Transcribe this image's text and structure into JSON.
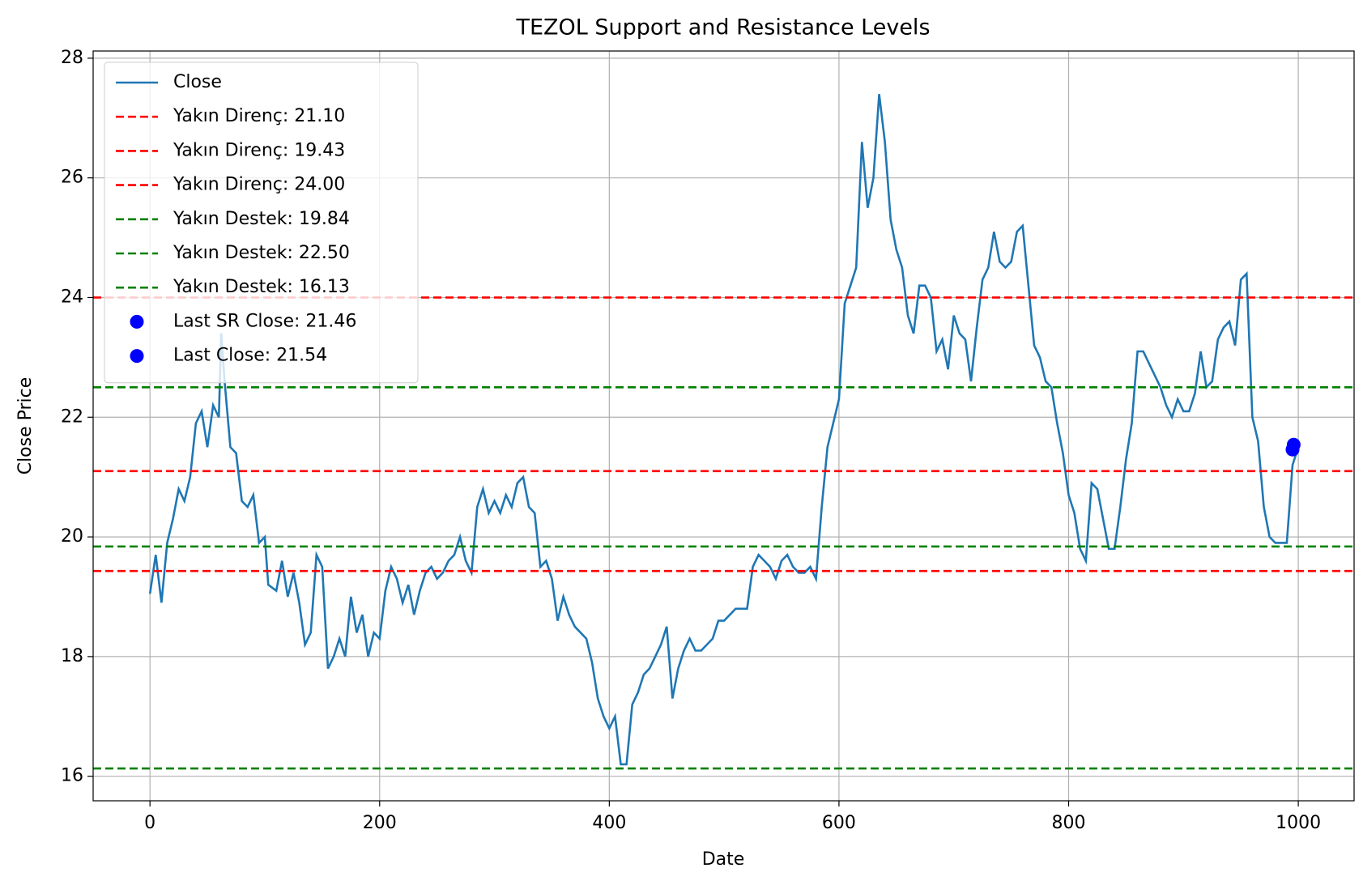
{
  "chart_data": {
    "type": "line",
    "title": "TEZOL Support and Resistance Levels",
    "x_label": "Date",
    "y_label": "Close Price",
    "xlim": [
      -49.5,
      1048.6
    ],
    "ylim": [
      15.59,
      28.12
    ],
    "xticks": [
      0,
      200,
      400,
      600,
      800,
      1000
    ],
    "yticks": [
      16,
      18,
      20,
      22,
      24,
      26,
      28
    ],
    "grid": true,
    "legend": "upper left",
    "x": [
      0,
      5,
      10,
      15,
      20,
      25,
      30,
      35,
      40,
      45,
      50,
      55,
      60,
      62,
      65,
      70,
      75,
      80,
      85,
      90,
      95,
      100,
      103,
      110,
      115,
      120,
      125,
      130,
      135,
      140,
      145,
      150,
      155,
      160,
      165,
      170,
      175,
      180,
      185,
      190,
      195,
      200,
      205,
      210,
      215,
      220,
      225,
      230,
      235,
      240,
      245,
      250,
      255,
      260,
      265,
      270,
      275,
      280,
      285,
      290,
      295,
      300,
      305,
      310,
      315,
      320,
      325,
      330,
      335,
      340,
      345,
      350,
      355,
      360,
      365,
      370,
      375,
      380,
      385,
      390,
      395,
      400,
      405,
      410,
      415,
      420,
      425,
      430,
      435,
      440,
      445,
      450,
      455,
      460,
      465,
      470,
      475,
      480,
      485,
      490,
      495,
      500,
      505,
      510,
      515,
      520,
      525,
      530,
      535,
      540,
      545,
      550,
      555,
      560,
      565,
      570,
      575,
      580,
      585,
      590,
      595,
      600,
      605,
      610,
      615,
      620,
      625,
      630,
      635,
      640,
      645,
      650,
      655,
      660,
      665,
      670,
      675,
      680,
      685,
      690,
      695,
      700,
      705,
      710,
      715,
      720,
      725,
      730,
      735,
      740,
      745,
      750,
      755,
      760,
      765,
      770,
      775,
      780,
      785,
      790,
      795,
      800,
      805,
      810,
      815,
      820,
      825,
      830,
      835,
      840,
      845,
      850,
      855,
      860,
      865,
      870,
      875,
      880,
      885,
      890,
      895,
      900,
      905,
      910,
      915,
      920,
      925,
      930,
      935,
      940,
      945,
      950,
      955,
      960,
      965,
      970,
      975,
      980,
      985,
      990,
      995,
      1000
    ],
    "series": [
      {
        "name": "Close",
        "color": "#1f77b4",
        "values": [
          19.05,
          19.7,
          18.9,
          19.9,
          20.3,
          20.8,
          20.6,
          21.0,
          21.9,
          22.1,
          21.5,
          22.2,
          22.0,
          23.4,
          22.6,
          21.5,
          21.4,
          20.6,
          20.5,
          20.7,
          19.9,
          20.0,
          19.2,
          19.1,
          19.6,
          19.0,
          19.4,
          18.9,
          18.2,
          18.4,
          19.7,
          19.5,
          17.8,
          18.0,
          18.3,
          18.0,
          19.0,
          18.4,
          18.7,
          18.0,
          18.4,
          18.3,
          19.1,
          19.5,
          19.3,
          18.9,
          19.2,
          18.7,
          19.1,
          19.4,
          19.5,
          19.3,
          19.4,
          19.6,
          19.7,
          20.0,
          19.6,
          19.4,
          20.5,
          20.8,
          20.4,
          20.6,
          20.4,
          20.7,
          20.5,
          20.9,
          21.0,
          20.5,
          20.4,
          19.5,
          19.6,
          19.3,
          18.6,
          19.0,
          18.7,
          18.5,
          18.4,
          18.3,
          17.9,
          17.3,
          17.0,
          16.8,
          17.0,
          16.2,
          16.2,
          17.2,
          17.4,
          17.7,
          17.8,
          18.0,
          18.2,
          18.5,
          17.3,
          17.8,
          18.1,
          18.3,
          18.1,
          18.1,
          18.2,
          18.3,
          18.6,
          18.6,
          18.7,
          18.8,
          18.8,
          18.8,
          19.5,
          19.7,
          19.6,
          19.5,
          19.3,
          19.6,
          19.7,
          19.5,
          19.4,
          19.4,
          19.5,
          19.3,
          20.5,
          21.5,
          21.9,
          22.3,
          23.9,
          24.2,
          24.5,
          26.6,
          25.5,
          26.0,
          27.4,
          26.6,
          25.3,
          24.8,
          24.5,
          23.7,
          23.4,
          24.2,
          24.2,
          24.0,
          23.1,
          23.3,
          22.8,
          23.7,
          23.4,
          23.3,
          22.6,
          23.5,
          24.3,
          24.5,
          25.1,
          24.6,
          24.5,
          24.6,
          25.1,
          25.2,
          24.2,
          23.2,
          23.0,
          22.6,
          22.5,
          21.9,
          21.4,
          20.7,
          20.4,
          19.8,
          19.6,
          20.9,
          20.8,
          20.3,
          19.8,
          19.8,
          20.5,
          21.3,
          21.9,
          23.1,
          23.1,
          22.9,
          22.7,
          22.5,
          22.2,
          22.0,
          22.3,
          22.1,
          22.1,
          22.4,
          23.1,
          22.5,
          22.6,
          23.3,
          23.5,
          23.6,
          23.2,
          24.3,
          24.4,
          22.0,
          21.6,
          20.5,
          20.0,
          19.9,
          19.9,
          19.9,
          21.2,
          21.5
        ]
      }
    ],
    "hlines": [
      {
        "name": "Yakın Direnç: 21.10",
        "color": "#ff0000",
        "value": 21.1
      },
      {
        "name": "Yakın Direnç: 19.43",
        "color": "#ff0000",
        "value": 19.43
      },
      {
        "name": "Yakın Direnç: 24.00",
        "color": "#ff0000",
        "value": 24.0
      },
      {
        "name": "Yakın Destek: 19.84",
        "color": "#008000",
        "value": 19.84
      },
      {
        "name": "Yakın Destek: 22.50",
        "color": "#008000",
        "value": 22.5
      },
      {
        "name": "Yakın Destek: 16.13",
        "color": "#008000",
        "value": 16.13
      }
    ],
    "points": [
      {
        "name": "Last SR Close: 21.46",
        "color": "#0000ff",
        "x": 995,
        "y": 21.46
      },
      {
        "name": "Last Close: 21.54",
        "color": "#0000ff",
        "x": 996,
        "y": 21.54
      }
    ]
  }
}
